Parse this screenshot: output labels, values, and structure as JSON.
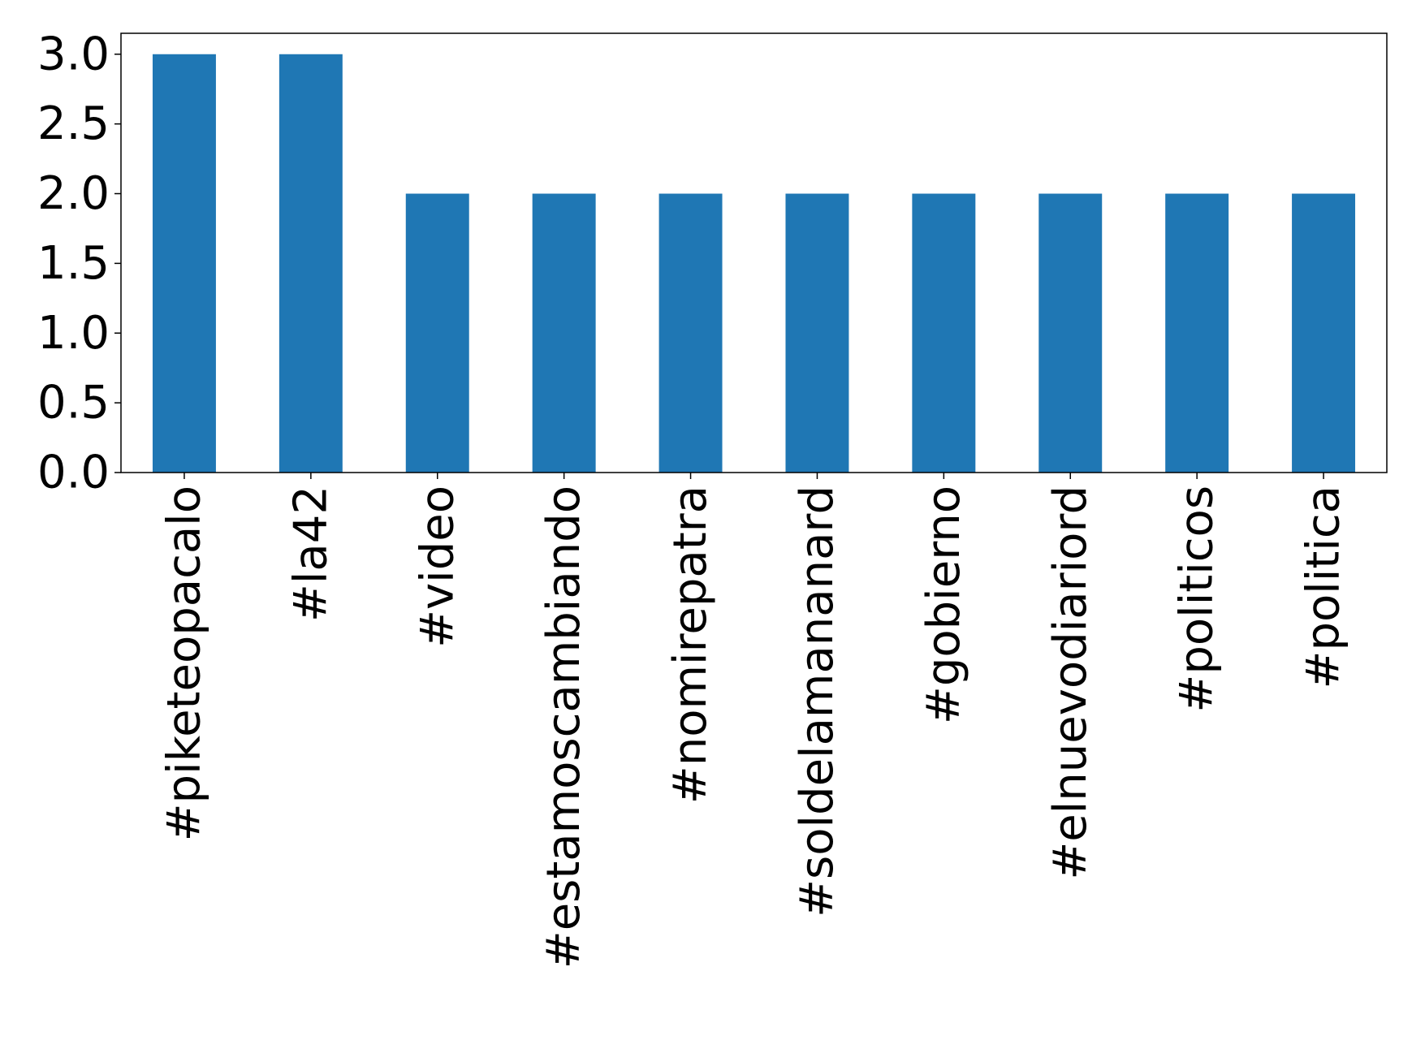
{
  "chart_data": {
    "type": "bar",
    "categories": [
      "#piketeopacalo",
      "#la42",
      "#video",
      "#estamoscambiando",
      "#nomirepatra",
      "#soldelamananard",
      "#gobierno",
      "#elnuevodiariord",
      "#politicos",
      "#politica"
    ],
    "values": [
      3,
      3,
      2,
      2,
      2,
      2,
      2,
      2,
      2,
      2
    ],
    "color": "#1f77b4",
    "ylim": [
      0,
      3.15
    ],
    "yticks": [
      {
        "value": 0,
        "label": "0.0"
      },
      0.5,
      {
        "value": 1,
        "label": "1.0"
      },
      1.5,
      {
        "value": 2,
        "label": "2.0"
      },
      2.5,
      {
        "value": 3,
        "label": "3.0"
      }
    ],
    "grid": false
  }
}
